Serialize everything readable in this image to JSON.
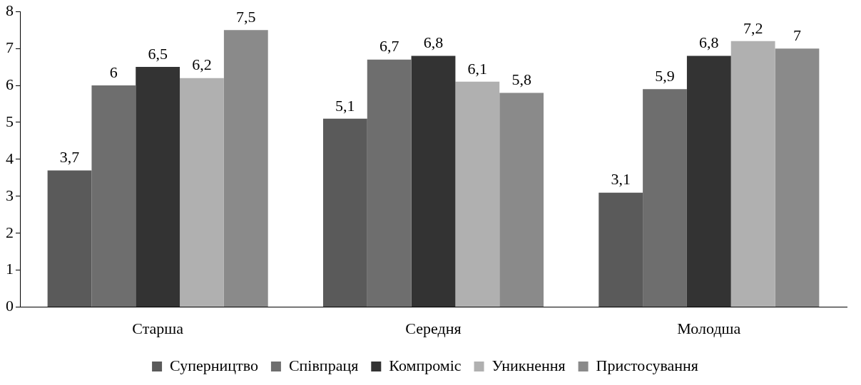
{
  "chart_data": {
    "type": "bar",
    "categories": [
      "Старша",
      "Середня",
      "Молодша"
    ],
    "series": [
      {
        "name": "Суперництво",
        "color": "#5a5a5a",
        "values": [
          3.7,
          5.1,
          3.1
        ],
        "value_labels": [
          "3,7",
          "5,1",
          "3,1"
        ]
      },
      {
        "name": "Співпраця",
        "color": "#6e6e6e",
        "values": [
          6,
          6.7,
          5.9
        ],
        "value_labels": [
          "6",
          "6,7",
          "5,9"
        ]
      },
      {
        "name": "Компроміс",
        "color": "#333333",
        "values": [
          6.5,
          6.8,
          6.8
        ],
        "value_labels": [
          "6,5",
          "6,8",
          "6,8"
        ]
      },
      {
        "name": "Уникнення",
        "color": "#b0b0b0",
        "values": [
          6.2,
          6.1,
          7.2
        ],
        "value_labels": [
          "6,2",
          "6,1",
          "7,2"
        ]
      },
      {
        "name": "Пристосування",
        "color": "#8a8a8a",
        "values": [
          7.5,
          5.8,
          7
        ],
        "value_labels": [
          "7,5",
          "5,8",
          "7"
        ]
      }
    ],
    "ylim": [
      0,
      8
    ],
    "yticks": [
      0,
      1,
      2,
      3,
      4,
      5,
      6,
      7,
      8
    ],
    "grid": false,
    "legend": "bottom"
  }
}
